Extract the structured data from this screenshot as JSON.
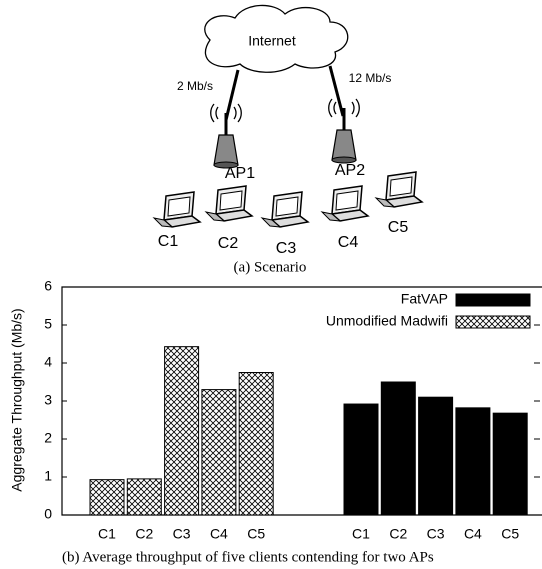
{
  "diagram": {
    "cloud": "Internet",
    "links": [
      "2 Mb/s",
      "12 Mb/s"
    ],
    "access_points": [
      "AP1",
      "AP2"
    ],
    "clients": [
      "C1",
      "C2",
      "C3",
      "C4",
      "C5"
    ],
    "caption": "(a) Scenario"
  },
  "chart_data": {
    "type": "bar",
    "y_label": "Aggregate Throughput (Mb/s)",
    "categories": [
      "C1",
      "C2",
      "C3",
      "C4",
      "C5"
    ],
    "series": [
      {
        "name": "FatVAP",
        "color": "#000000",
        "values": [
          2.92,
          3.5,
          3.1,
          2.82,
          2.68
        ]
      },
      {
        "name": "Unmodified Madwifi",
        "color": "#ffffff",
        "hatch": "xx",
        "values": [
          0.93,
          0.95,
          4.43,
          3.3,
          3.75
        ]
      }
    ],
    "ylim": [
      0,
      6
    ],
    "yticks": [
      0,
      1,
      2,
      3,
      4,
      5,
      6
    ],
    "legend": "upper right",
    "caption": "(b) Average throughput of five clients contending for two APs"
  }
}
